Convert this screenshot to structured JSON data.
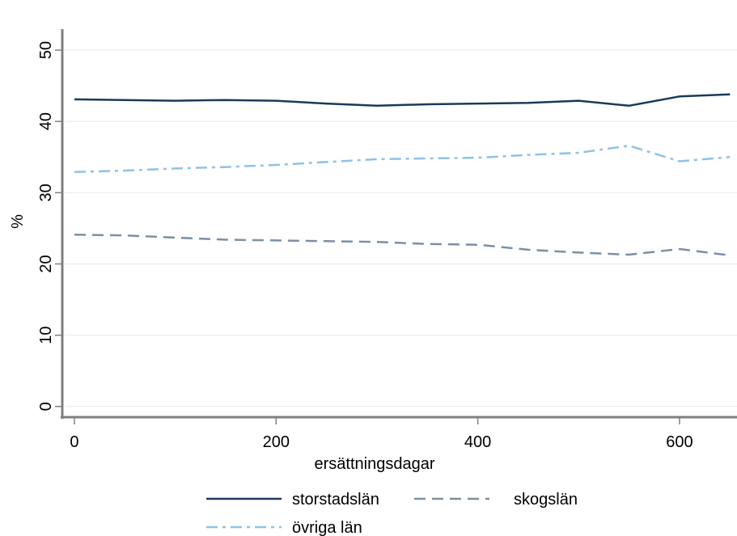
{
  "chart_data": {
    "type": "line",
    "xlabel": "ersättningsdagar",
    "ylabel": "%",
    "xlim": [
      -12,
      657
    ],
    "ylim": [
      -1.5,
      52.5
    ],
    "x_ticks": [
      0,
      200,
      400,
      600
    ],
    "y_ticks": [
      0,
      10,
      20,
      30,
      40,
      50
    ],
    "grid": true,
    "legend_position": "bottom",
    "x": [
      0,
      50,
      100,
      150,
      200,
      250,
      300,
      350,
      400,
      450,
      500,
      550,
      600,
      650
    ],
    "series": [
      {
        "name": "storstadslän",
        "color": "#1a3a5c",
        "dash": "solid",
        "values": [
          43.1,
          43.0,
          42.9,
          43.0,
          42.9,
          42.5,
          42.2,
          42.4,
          42.5,
          42.6,
          42.9,
          42.2,
          43.5,
          43.8
        ]
      },
      {
        "name": "skogslän",
        "color": "#7b8fa6",
        "dash": "dash",
        "values": [
          24.1,
          24.0,
          23.7,
          23.4,
          23.3,
          23.2,
          23.1,
          22.8,
          22.7,
          22.0,
          21.6,
          21.3,
          22.1,
          21.2
        ]
      },
      {
        "name": "övriga län",
        "color": "#8cc3e6",
        "dash": "dashdot",
        "values": [
          32.9,
          33.1,
          33.4,
          33.6,
          33.9,
          34.3,
          34.7,
          34.8,
          34.9,
          35.3,
          35.6,
          36.6,
          34.4,
          35.0
        ]
      }
    ]
  }
}
